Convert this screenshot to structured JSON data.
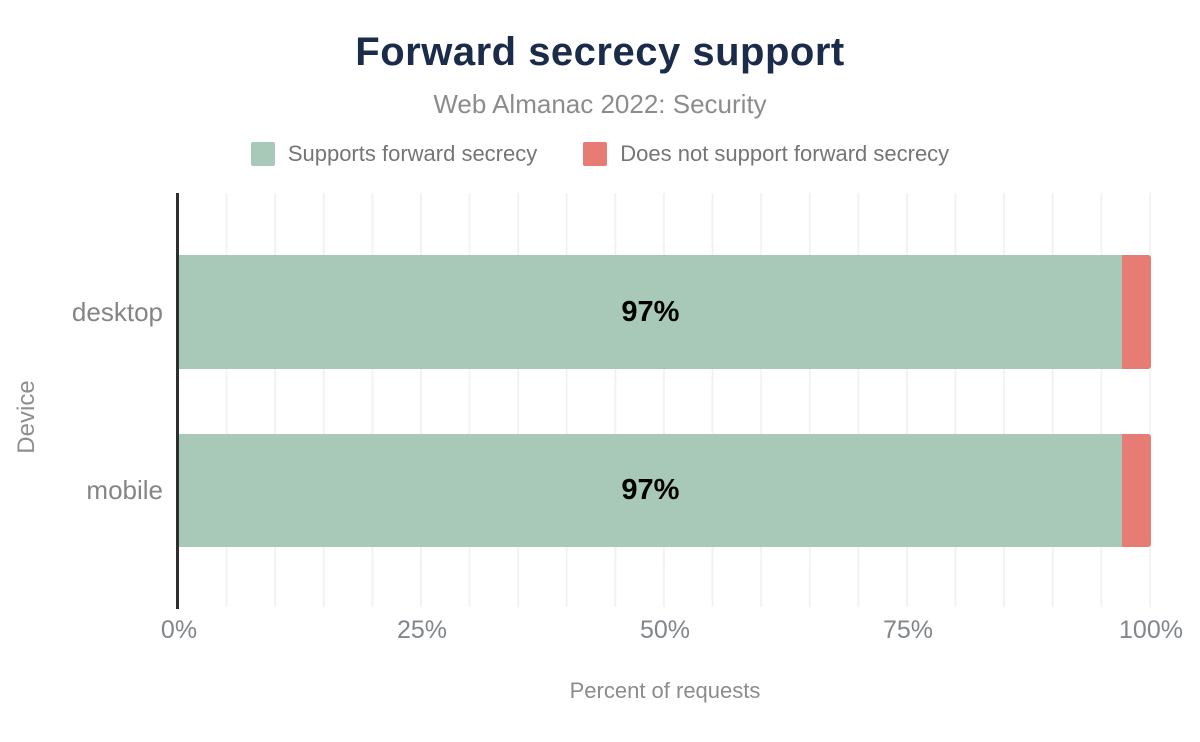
{
  "title": "Forward secrecy support",
  "subtitle": "Web Almanac 2022: Security",
  "legend": {
    "position": "top",
    "items": [
      {
        "label": "Supports forward secrecy",
        "color": "#a8c9b7"
      },
      {
        "label": "Does not support forward secrecy",
        "color": "#e67c73"
      }
    ]
  },
  "chart_data": {
    "type": "bar",
    "orientation": "horizontal",
    "stacked": true,
    "title": "Forward secrecy support",
    "subtitle": "Web Almanac 2022: Security",
    "categories": [
      "desktop",
      "mobile"
    ],
    "series": [
      {
        "name": "Supports forward secrecy",
        "color": "#a8c9b7",
        "values": [
          97,
          97
        ]
      },
      {
        "name": "Does not support forward secrecy",
        "color": "#e67c73",
        "values": [
          3,
          3
        ]
      }
    ],
    "bar_labels": [
      "97%",
      "97%"
    ],
    "xlabel": "Percent of requests",
    "ylabel": "Device",
    "xlim": [
      0,
      100
    ],
    "xticks": [
      "0%",
      "25%",
      "50%",
      "75%",
      "100%"
    ],
    "grid": "vertical gridlines every 5%",
    "legend_position": "top"
  },
  "colors": {
    "title": "#1b2b4a",
    "subtitle_text": "#8c8c8c",
    "axis_line": "#2e2e2e",
    "tick_text": "#82868c",
    "gridline": "#f2f2f2",
    "bar_label_text": "#000000",
    "background": "#ffffff"
  }
}
